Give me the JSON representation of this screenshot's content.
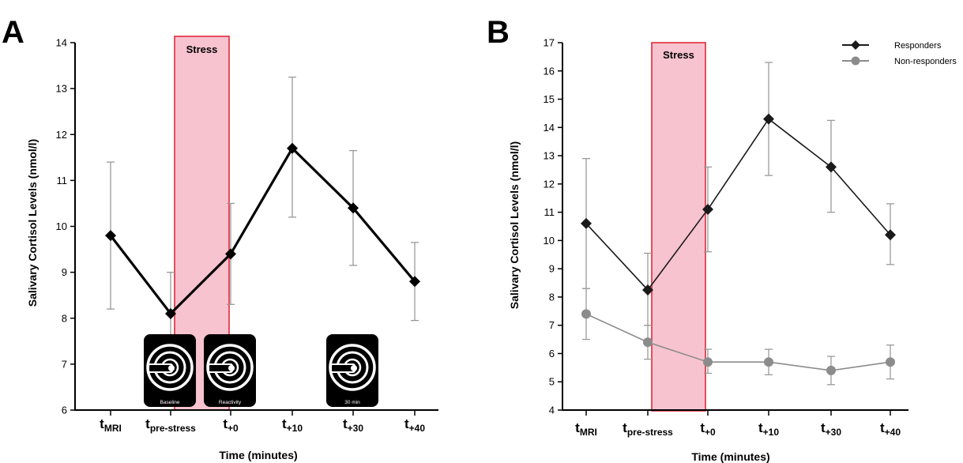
{
  "chart_data": [
    {
      "panel": "A",
      "type": "line",
      "ylabel": "Salivary Cortisol Levels (nmol/l)",
      "xlabel": "Time (minutes)",
      "ylim": [
        6,
        14
      ],
      "yticks": [
        6,
        7,
        8,
        9,
        10,
        11,
        12,
        13,
        14
      ],
      "categories": [
        {
          "main": "t",
          "sub": "MRI"
        },
        {
          "main": "t",
          "sub": "pre-stress"
        },
        {
          "main": "t",
          "sub": "+0"
        },
        {
          "main": "t",
          "sub": "+10"
        },
        {
          "main": "t",
          "sub": "+30"
        },
        {
          "main": "t",
          "sub": "+40"
        }
      ],
      "series": [
        {
          "name": "",
          "color": "#000000",
          "marker": "diamond",
          "values": [
            9.8,
            8.1,
            9.4,
            11.7,
            10.4,
            8.8
          ],
          "err_low": [
            8.2,
            7.2,
            8.3,
            10.2,
            9.15,
            7.95
          ],
          "err_high": [
            11.4,
            9.0,
            10.5,
            13.25,
            11.65,
            9.65
          ]
        }
      ],
      "stress_label": "Stress",
      "icons": [
        {
          "name": "mri-scanner-icon",
          "caption": "Baseline"
        },
        {
          "name": "mri-scanner-icon",
          "caption": "Reactivity"
        },
        {
          "name": "mri-scanner-icon",
          "caption": "30 min"
        }
      ]
    },
    {
      "panel": "B",
      "type": "line",
      "ylabel": "Salivary Cortisol Levels (nmol/l)",
      "xlabel": "Time (minutes)",
      "ylim": [
        4,
        17
      ],
      "yticks": [
        4,
        5,
        6,
        7,
        8,
        9,
        10,
        11,
        12,
        13,
        14,
        15,
        16,
        17
      ],
      "categories": [
        {
          "main": "t",
          "sub": "MRI"
        },
        {
          "main": "t",
          "sub": "pre-stress"
        },
        {
          "main": "t",
          "sub": "+0"
        },
        {
          "main": "t",
          "sub": "+10"
        },
        {
          "main": "t",
          "sub": "+30"
        },
        {
          "main": "t",
          "sub": "+40"
        }
      ],
      "series": [
        {
          "name": "Responders",
          "color": "#1a1a1a",
          "marker": "diamond",
          "values": [
            10.6,
            8.25,
            11.1,
            14.3,
            12.6,
            10.2
          ],
          "err_low": [
            8.3,
            7.0,
            9.6,
            12.3,
            11.0,
            9.15
          ],
          "err_high": [
            12.9,
            9.55,
            12.6,
            16.3,
            14.25,
            11.3
          ]
        },
        {
          "name": "Non-responders",
          "color": "#8c8c8c",
          "marker": "circle",
          "values": [
            7.4,
            6.4,
            5.7,
            5.7,
            5.4,
            5.7
          ],
          "err_low": [
            6.5,
            5.8,
            5.3,
            5.25,
            4.9,
            5.1
          ],
          "err_high": [
            8.3,
            7.0,
            6.15,
            6.15,
            5.9,
            6.3
          ]
        }
      ],
      "stress_label": "Stress",
      "legend_position": "top-right"
    }
  ]
}
